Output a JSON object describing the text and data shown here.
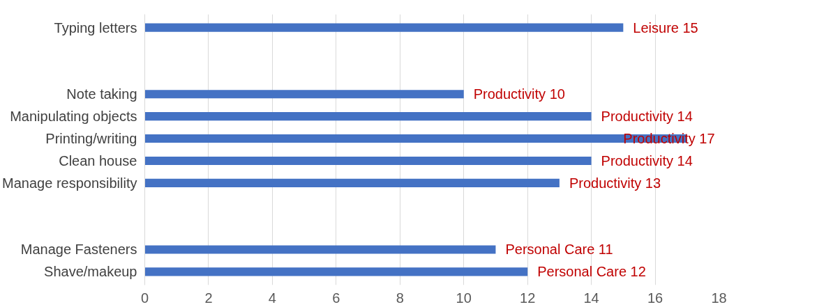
{
  "chart_data": {
    "type": "bar",
    "orientation": "horizontal",
    "categories": [
      "Typing letters",
      null,
      null,
      "Note taking",
      "Manipulating objects",
      "Printing/writing",
      "Clean house",
      "Manage responsibility",
      null,
      null,
      "Manage Fasteners",
      "Shave/makeup"
    ],
    "values": [
      15,
      null,
      null,
      10,
      14,
      17,
      14,
      13,
      null,
      null,
      11,
      12
    ],
    "value_labels": [
      "Leisure 15",
      null,
      null,
      "Productivity 10",
      "Productivity 14",
      "Productivity 17",
      "Productivity 14",
      "Productivity 13",
      null,
      null,
      "Personal Care 11",
      "Personal Care 12"
    ],
    "color": "#4472c4",
    "xlim": [
      0,
      18
    ],
    "xticks": [
      0,
      2,
      4,
      6,
      8,
      10,
      12,
      14,
      16,
      18
    ],
    "grid": "x"
  }
}
